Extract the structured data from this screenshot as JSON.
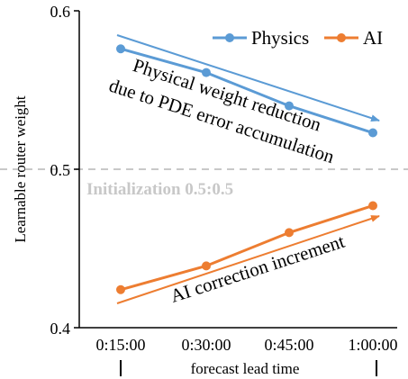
{
  "chart_data": {
    "type": "line",
    "categories": [
      "0:15:00",
      "0:30:00",
      "0:45:00",
      "1:00:00"
    ],
    "series": [
      {
        "name": "Physics",
        "values": [
          0.576,
          0.561,
          0.54,
          0.523
        ],
        "color": "#5B9BD5"
      },
      {
        "name": "AI",
        "values": [
          0.424,
          0.439,
          0.46,
          0.477
        ],
        "color": "#ED7D31"
      }
    ],
    "xlabel": "forecast lead time",
    "ylabel": "Learnable router weight",
    "ylim": [
      0.4,
      0.6
    ],
    "yticks": [
      "0.4",
      "0.5",
      "0.6"
    ],
    "legend": "top-right",
    "grid": false,
    "reference_line": {
      "value": 0.5,
      "label": "Initialization 0.5:0.5",
      "color": "#C8C8C8"
    },
    "annotations": [
      {
        "text": "Physical weight reduction",
        "series": "Physics"
      },
      {
        "text": "due to PDE error accumulation",
        "series": "Physics"
      },
      {
        "text": "AI correction increment",
        "series": "AI"
      }
    ]
  }
}
